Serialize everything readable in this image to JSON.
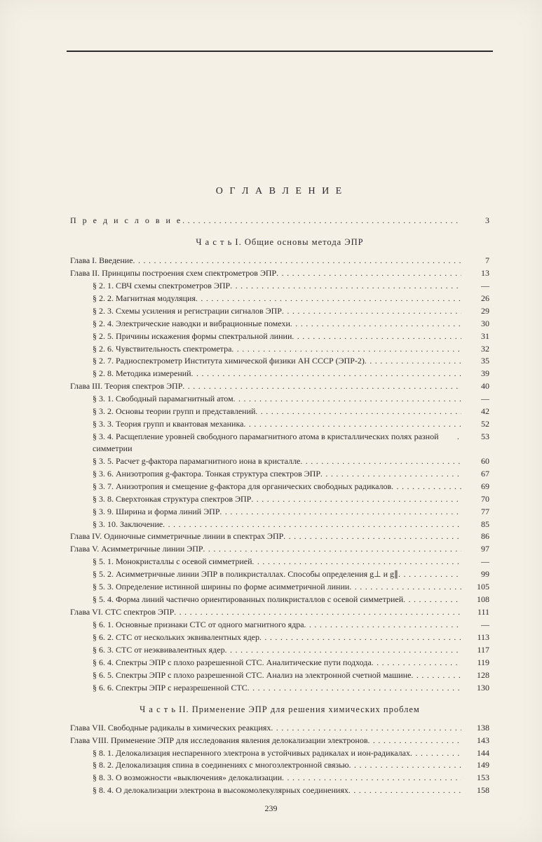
{
  "page_number": "239",
  "title": "О Г Л А В Л Е Н И Е",
  "preface": {
    "label": "П р е д и с л о в и е",
    "page": "3"
  },
  "parts": [
    {
      "heading": "Ч а с т ь  I.  Общие основы метода ЭПР",
      "items": [
        {
          "indent": 0,
          "label": "Глава I. Введение",
          "page": "7"
        },
        {
          "indent": 0,
          "label": "Глава II. Принципы построения схем спектрометров ЭПР",
          "page": "13"
        },
        {
          "indent": 1,
          "label": "§ 2. 1. СВЧ схемы спектрометров ЭПР",
          "page": "—"
        },
        {
          "indent": 1,
          "label": "§ 2. 2. Магнитная модуляция",
          "page": "26"
        },
        {
          "indent": 1,
          "label": "§ 2. 3. Схемы усиления и регистрации сигналов ЭПР",
          "page": "29"
        },
        {
          "indent": 1,
          "label": "§ 2. 4. Электрические наводки и вибрационные помехи",
          "page": "30"
        },
        {
          "indent": 1,
          "label": "§ 2. 5. Причины искажения формы спектральной линии",
          "page": "31"
        },
        {
          "indent": 1,
          "label": "§ 2. 6. Чувствительность спектрометра",
          "page": "32"
        },
        {
          "indent": 1,
          "label": "§ 2. 7. Радиоспектрометр Института химической физики АН СССР (ЭПР-2)",
          "page": "35"
        },
        {
          "indent": 1,
          "label": "§ 2. 8. Методика измерений",
          "page": "39"
        },
        {
          "indent": 0,
          "label": "Глава III. Теория спектров ЭПР",
          "page": "40"
        },
        {
          "indent": 1,
          "label": "§ 3. 1. Свободный парамагнитный атом",
          "page": "—"
        },
        {
          "indent": 1,
          "label": "§ 3. 2. Основы теории групп и представлений",
          "page": "42"
        },
        {
          "indent": 1,
          "label": "§ 3. 3. Теория групп и квантовая механика",
          "page": "52"
        },
        {
          "indent": 1,
          "label": "§ 3. 4. Расщепление уровней свободного парамагнитного атома в кристаллических полях разной симметрии",
          "page": "53",
          "wrap": true
        },
        {
          "indent": 1,
          "label": "§ 3. 5. Расчет g-фактора парамагнитного иона в кристалле",
          "page": "60"
        },
        {
          "indent": 1,
          "label": "§ 3. 6. Анизотропия g-фактора. Тонкая структура спектров ЭПР",
          "page": "67"
        },
        {
          "indent": 1,
          "label": "§ 3. 7. Анизотропия и смещение g-фактора для органических свободных радикалов",
          "page": "69"
        },
        {
          "indent": 1,
          "label": "§ 3. 8. Сверхтонкая структура спектров ЭПР",
          "page": "70"
        },
        {
          "indent": 1,
          "label": "§ 3. 9. Ширина и форма линий ЭПР",
          "page": "77"
        },
        {
          "indent": 1,
          "label": "§ 3. 10. Заключение",
          "page": "85"
        },
        {
          "indent": 0,
          "label": "Глава IV. Одиночные симметричные линии в спектрах ЭПР",
          "page": "86"
        },
        {
          "indent": 0,
          "label": "Глава V. Асимметричные линии ЭПР",
          "page": "97"
        },
        {
          "indent": 1,
          "label": "§ 5. 1. Монокристаллы с осевой симметрией",
          "page": "—"
        },
        {
          "indent": 1,
          "label": "§ 5. 2. Асимметричные линии ЭПР в поликристаллах. Способы определения g⊥ и g∥",
          "page": "99"
        },
        {
          "indent": 1,
          "label": "§ 5. 3. Определение истинной ширины по форме асимметричной линии",
          "page": "105"
        },
        {
          "indent": 1,
          "label": "§ 5. 4. Форма линий частично ориентированных поликристаллов с осевой симметрией",
          "page": "108"
        },
        {
          "indent": 0,
          "label": "Глава VI. СТС спектров ЭПР",
          "page": "111"
        },
        {
          "indent": 1,
          "label": "§ 6. 1. Основные признаки СТС от одного магнитного ядра",
          "page": "—"
        },
        {
          "indent": 1,
          "label": "§ 6. 2. СТС от нескольких эквивалентных ядер",
          "page": "113"
        },
        {
          "indent": 1,
          "label": "§ 6. 3. СТС от неэквивалентных ядер",
          "page": "117"
        },
        {
          "indent": 1,
          "label": "§ 6. 4. Спектры ЭПР с плохо разрешенной СТС. Аналитические пути подхода",
          "page": "119"
        },
        {
          "indent": 1,
          "label": "§ 6. 5. Спектры ЭПР с плохо разрешенной СТС. Анализ на электронной счетной машине",
          "page": "128",
          "wrap": true
        },
        {
          "indent": 1,
          "label": "§ 6. 6. Спектры ЭПР с неразрешенной СТС",
          "page": "130"
        }
      ]
    },
    {
      "heading": "Ч а с т ь  II. Применение ЭПР для решения химических проблем",
      "items": [
        {
          "indent": 0,
          "label": "Глава VII. Свободные радикалы в химических реакциях",
          "page": "138"
        },
        {
          "indent": 0,
          "label": "Глава VIII. Применение ЭПР для исследования явления делокализации электронов",
          "page": "143"
        },
        {
          "indent": 1,
          "label": "§ 8. 1. Делокализация неспаренного электрона в устойчивых радикалах и ион-радикалах",
          "page": "144",
          "wrap": true
        },
        {
          "indent": 1,
          "label": "§ 8. 2. Делокализация спина в соединениях с многоэлектронной связью",
          "page": "149"
        },
        {
          "indent": 1,
          "label": "§ 8. 3. О возможности «выключения» делокализации",
          "page": "153"
        },
        {
          "indent": 1,
          "label": "§ 8. 4. О делокализации электрона в высокомолекулярных соединениях",
          "page": "158"
        }
      ]
    }
  ]
}
